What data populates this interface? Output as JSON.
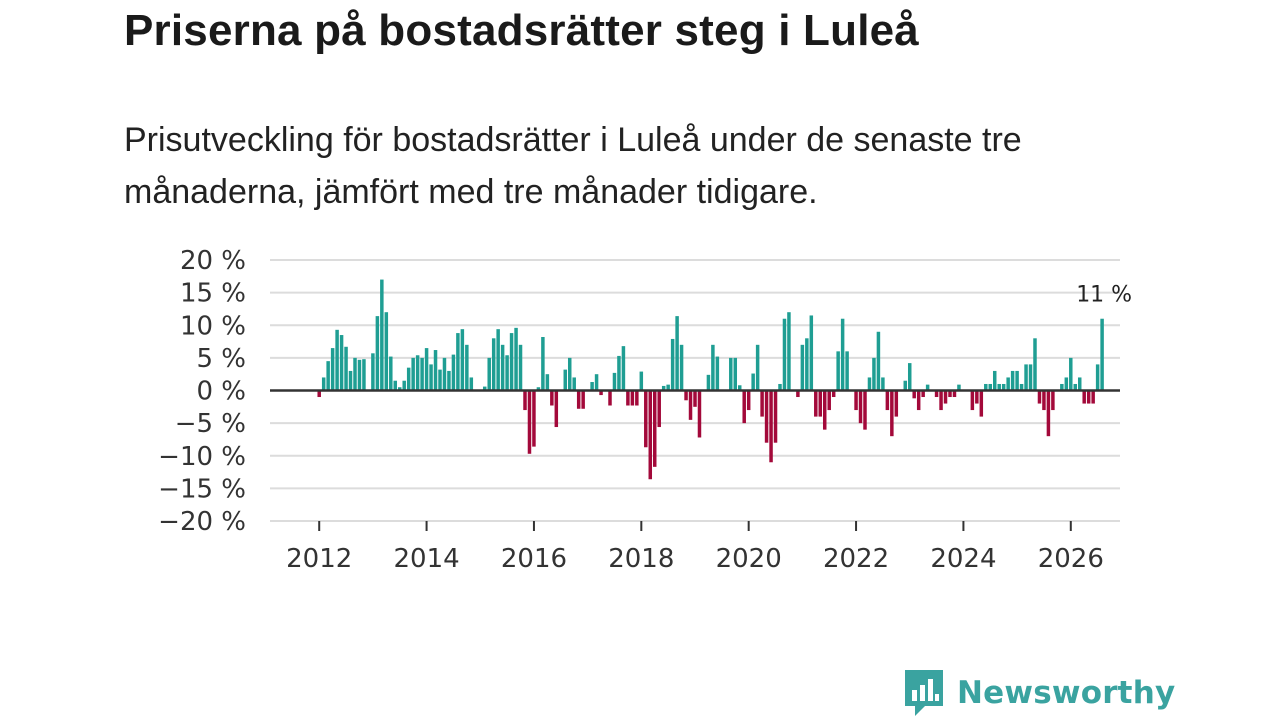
{
  "header": {
    "title": "Priserna på bostadsrätter steg i Luleå",
    "subtitle": "Prisutveckling för bostadsrätter i Luleå under de senaste tre månaderna, jämfört med tre månader tidigare."
  },
  "brand": {
    "name": "Newsworthy",
    "icon": "newsworthy-logo-icon",
    "color": "#3aa3a0"
  },
  "chart_data": {
    "type": "bar",
    "title": "Priserna på bostadsrätter steg i Luleå",
    "xlabel": "",
    "ylabel": "",
    "ylim": [
      -20,
      20
    ],
    "y_ticks": [
      20,
      15,
      10,
      5,
      0,
      -5,
      -10,
      -15,
      -20
    ],
    "y_tick_labels": [
      "20 %",
      "15 %",
      "10 %",
      "5 %",
      "0 %",
      "−5 %",
      "−10 %",
      "−15 %",
      "−20 %"
    ],
    "x_tick_labels": [
      "2012",
      "2014",
      "2016",
      "2018",
      "2020",
      "2022",
      "2024",
      "2026"
    ],
    "x_range": [
      2011.0833,
      2026.9167
    ],
    "start": "2012-01",
    "grid": true,
    "colors": {
      "positive": "#1f9e93",
      "negative": "#a3093a"
    },
    "last_value_label": "11 %",
    "values": [
      -1,
      2,
      4.5,
      6.5,
      9.3,
      8.5,
      6.7,
      3,
      5,
      4.7,
      4.8,
      0,
      5.7,
      11.4,
      17,
      12,
      5.2,
      1.5,
      0.5,
      1.5,
      3.5,
      5,
      5.4,
      5,
      6.5,
      4,
      6.2,
      3.2,
      5,
      3,
      5.5,
      8.8,
      9.4,
      7,
      2,
      0,
      0,
      0.6,
      5,
      8,
      9.4,
      7,
      5.4,
      8.8,
      9.6,
      7,
      -3,
      -9.7,
      -8.6,
      0.5,
      8.2,
      2.5,
      -2.3,
      -5.6,
      0,
      3.2,
      5,
      2,
      -2.8,
      -2.8,
      0,
      1.3,
      2.5,
      -0.7,
      0,
      -2.3,
      2.7,
      5.3,
      6.8,
      -2.3,
      -2.3,
      -2.3,
      2.9,
      -8.7,
      -13.6,
      -11.7,
      -5.6,
      0.7,
      0.9,
      7.9,
      11.4,
      7,
      -1.5,
      -4.5,
      -2.5,
      -7.2,
      0,
      2.4,
      7,
      5.2,
      0,
      0,
      5,
      5,
      0.8,
      -5,
      -3,
      2.6,
      7,
      -4,
      -8,
      -11,
      -8,
      1,
      11,
      12,
      0,
      -1,
      7,
      8,
      11.5,
      -4,
      -4,
      -6,
      -3,
      -1,
      6,
      11,
      6,
      0,
      -3,
      -5,
      -6,
      2,
      5,
      9,
      2,
      -3,
      -7,
      -4,
      0,
      1.5,
      4.2,
      -1.2,
      -3,
      -1,
      0.9,
      0,
      -1,
      -3,
      -2,
      -1,
      -1,
      0.9,
      0,
      0,
      -3,
      -2,
      -4,
      1,
      1,
      3,
      1,
      1,
      2,
      3,
      3,
      1,
      4,
      4,
      8,
      -2,
      -3,
      -7,
      -3,
      0,
      1,
      2,
      5,
      1,
      2,
      -2,
      -2,
      -2,
      4,
      11
    ]
  }
}
